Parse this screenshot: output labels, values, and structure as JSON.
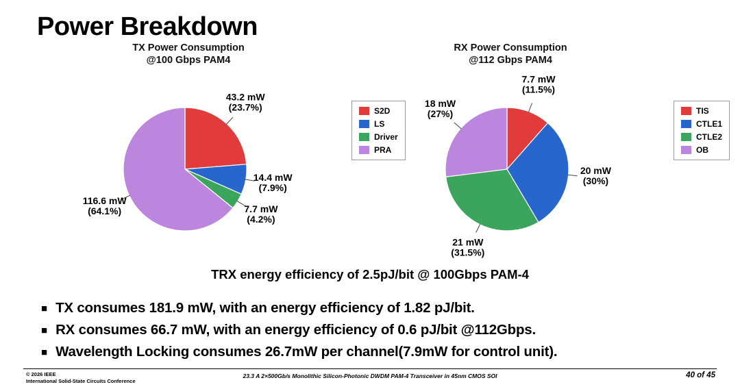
{
  "slide": {
    "title": "Power Breakdown",
    "trx_line": "TRX energy efficiency of 2.5pJ/bit @ 100Gbps PAM-4",
    "bullets": [
      {
        "marker": "■",
        "text": "TX consumes 181.9 mW, with an energy efficiency of 1.82 pJ/bit."
      },
      {
        "marker": "■",
        "text": "RX consumes 66.7 mW, with an energy efficiency of 0.6 pJ/bit @112Gbps."
      },
      {
        "marker": "■",
        "text": "Wavelength Locking consumes 26.7mW per channel(7.9mW for control unit)."
      }
    ],
    "footer": {
      "copyright_line1": "© 2026 IEEE",
      "copyright_line2": "International Solid-State Circuits Conference",
      "paper_title": "23.3 A 2×500Gb/s Monolithic Silicon-Photonic DWDM PAM-4 Transceiver in 45nm CMOS SOI",
      "page": "40 of 45"
    }
  },
  "chart_data": [
    {
      "type": "pie",
      "id": "tx",
      "title": "TX Power Consumption",
      "subtitle": "@100 Gbps PAM4",
      "total_mw": 181.9,
      "start_angle_deg": 0,
      "direction": "clockwise",
      "legend_position": "right",
      "slices": [
        {
          "label": "S2D",
          "value_mw": 43.2,
          "percent": 23.7,
          "color": "#e23b3b",
          "callout": [
            "43.2 mW",
            "(23.7%)"
          ]
        },
        {
          "label": "LS",
          "value_mw": 14.4,
          "percent": 7.9,
          "color": "#2766cc",
          "callout": [
            "14.4 mW",
            "(7.9%)"
          ]
        },
        {
          "label": "Driver",
          "value_mw": 7.7,
          "percent": 4.2,
          "color": "#3ba55d",
          "callout": [
            "7.7 mW",
            "(4.2%)"
          ]
        },
        {
          "label": "PRA",
          "value_mw": 116.6,
          "percent": 64.1,
          "color": "#bc85de",
          "callout": [
            "116.6 mW",
            "(64.1%)"
          ]
        }
      ]
    },
    {
      "type": "pie",
      "id": "rx",
      "title": "RX Power Consumption",
      "subtitle": "@112 Gbps PAM4",
      "total_mw": 66.7,
      "start_angle_deg": 0,
      "direction": "clockwise",
      "legend_position": "right",
      "slices": [
        {
          "label": "TIS",
          "value_mw": 7.7,
          "percent": 11.5,
          "color": "#e23b3b",
          "callout": [
            "7.7 mW",
            "(11.5%)"
          ]
        },
        {
          "label": "CTLE1",
          "value_mw": 20,
          "percent": 30,
          "color": "#2766cc",
          "callout": [
            "20 mW",
            "(30%)"
          ]
        },
        {
          "label": "CTLE2",
          "value_mw": 21,
          "percent": 31.5,
          "color": "#3ba55d",
          "callout": [
            "21 mW",
            "(31.5%)"
          ]
        },
        {
          "label": "OB",
          "value_mw": 18,
          "percent": 27,
          "color": "#bc85de",
          "callout": [
            "18 mW",
            "(27%)"
          ]
        }
      ]
    }
  ]
}
